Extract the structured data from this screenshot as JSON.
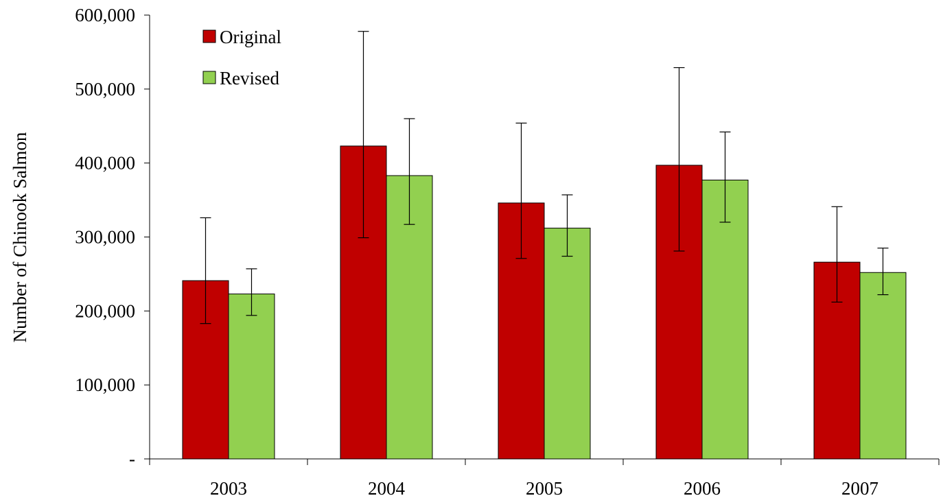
{
  "chart_data": {
    "type": "bar",
    "ylabel": "Number of Chinook Salmon",
    "xlabel": "",
    "categories": [
      "2003",
      "2004",
      "2005",
      "2006",
      "2007"
    ],
    "ylim": [
      0,
      600000
    ],
    "yticks": [
      0,
      100000,
      200000,
      300000,
      400000,
      500000,
      600000
    ],
    "ytick_labels": [
      "-",
      "100,000",
      "200,000",
      "300,000",
      "400,000",
      "500,000",
      "600,000"
    ],
    "grid": false,
    "legend_position": "top-left",
    "error_bars": true,
    "series": [
      {
        "name": "Original",
        "color": "#C00000",
        "values": [
          241000,
          423000,
          346000,
          397000,
          266000
        ],
        "err_low": [
          183000,
          299000,
          271000,
          281000,
          212000
        ],
        "err_high": [
          326000,
          578000,
          454000,
          529000,
          341000
        ]
      },
      {
        "name": "Revised",
        "color": "#92D050",
        "values": [
          223000,
          383000,
          312000,
          377000,
          252000
        ],
        "err_low": [
          194000,
          317000,
          274000,
          320000,
          222000
        ],
        "err_high": [
          257000,
          460000,
          357000,
          442000,
          285000
        ]
      }
    ]
  }
}
